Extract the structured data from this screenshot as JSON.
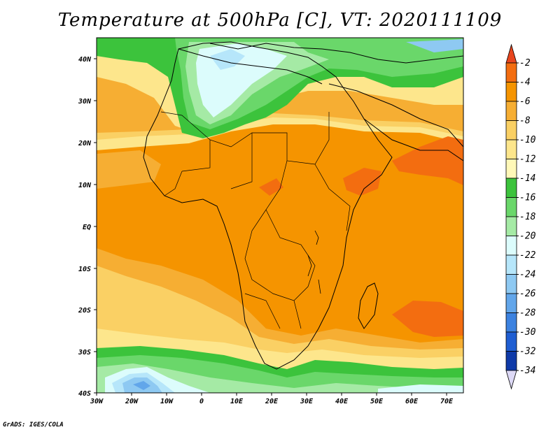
{
  "title": "Temperature at 500hPa [C], VT: 2020111109",
  "credit": "GrADS: IGES/COLA",
  "chart_data": {
    "type": "heatmap",
    "title": "Temperature at 500hPa [C], VT: 2020111109",
    "x_ticks": [
      "30W",
      "20W",
      "10W",
      "0",
      "10E",
      "20E",
      "30E",
      "40E",
      "50E",
      "60E",
      "70E"
    ],
    "y_ticks": [
      "40N",
      "30N",
      "20N",
      "10N",
      "EQ",
      "10S",
      "20S",
      "30S",
      "40S"
    ],
    "xlim": [
      -30,
      75
    ],
    "ylim": [
      -40,
      45
    ],
    "colorbar": {
      "labels": [
        "-2",
        "-4",
        "-6",
        "-8",
        "-10",
        "-12",
        "-14",
        "-16",
        "-18",
        "-20",
        "-22",
        "-24",
        "-26",
        "-28",
        "-30",
        "-32",
        "-34"
      ],
      "colors": [
        "#e8451e",
        "#f36d10",
        "#f59400",
        "#f6ae33",
        "#fad064",
        "#fde68c",
        "#fff8b8",
        "#3cc33c",
        "#6ad76a",
        "#a5eaa5",
        "#dcfcfc",
        "#b6e6fa",
        "#8ec9f2",
        "#62a6ea",
        "#3c82e0",
        "#1f5ed2",
        "#0f3aa8",
        "#0a1a72"
      ]
    }
  }
}
